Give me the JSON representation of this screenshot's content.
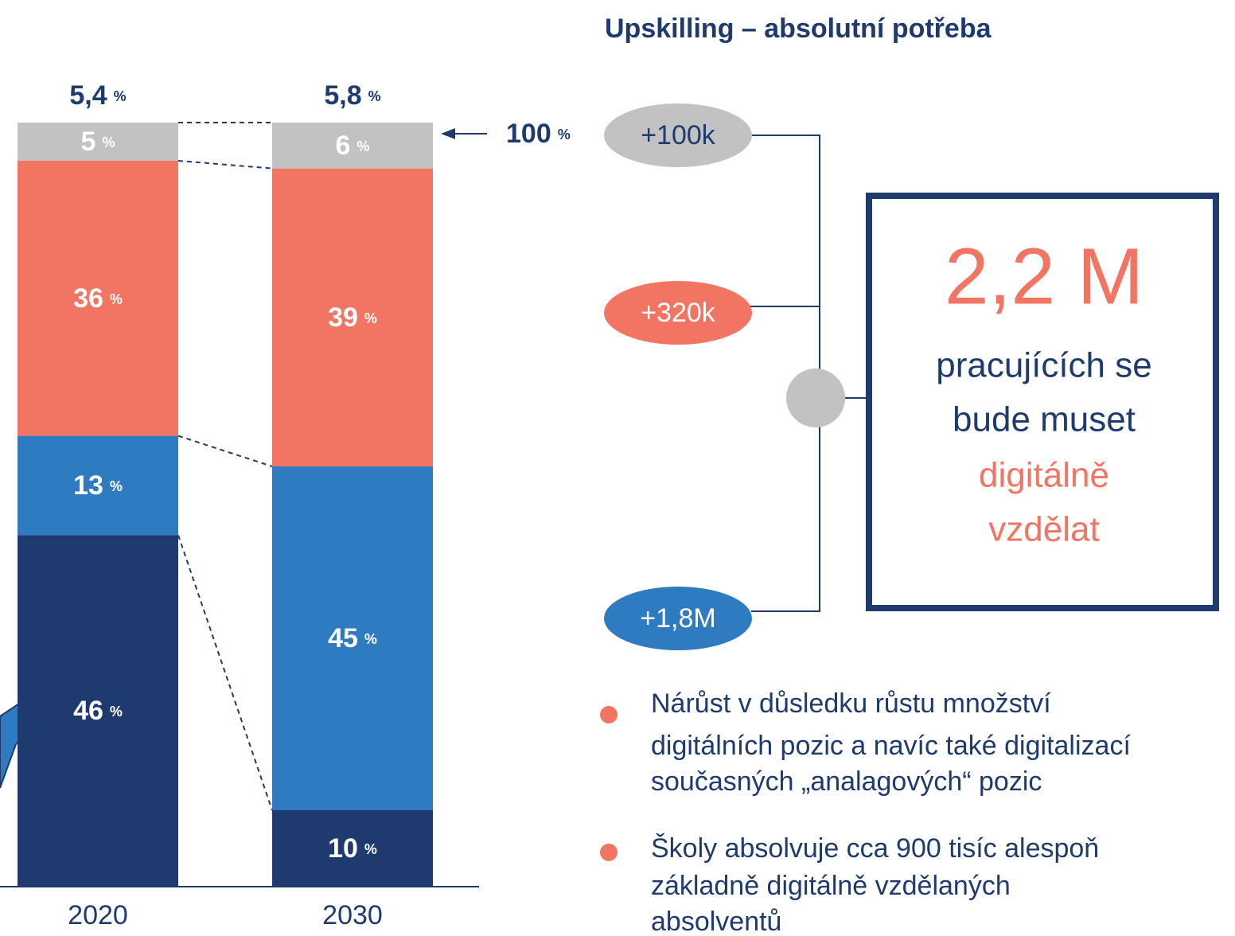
{
  "chart_data": {
    "type": "stacked_bar",
    "categories": [
      "2020",
      "2030"
    ],
    "series": [
      {
        "color": "#1e3a6e",
        "values": [
          46,
          10
        ]
      },
      {
        "color": "#2f7bc1",
        "values": [
          13,
          45
        ]
      },
      {
        "color": "#f17562",
        "values": [
          36,
          39
        ]
      },
      {
        "color": "#c2c2c2",
        "values": [
          5,
          6
        ]
      }
    ],
    "unit": "%",
    "top_labels": [
      "5,4",
      "5,8"
    ],
    "reference_label": 100,
    "ylim": [
      0,
      100
    ]
  },
  "diagram": {
    "title": "Upskilling – absolutní potřeba",
    "bubbles": [
      "+100k",
      "+320k",
      "+1,8M"
    ],
    "box": {
      "number": "2,2 M",
      "lines": [
        "pracujících se",
        "bude muset",
        "digitálně",
        "vzdělat"
      ]
    },
    "bullets": [
      [
        "Nárůst v důsledku růstu množství",
        "digitálních pozic a navíc také digitalizací",
        "současných „analagových“ pozic"
      ],
      [
        "Školy absolvuje cca 900 tisíc alespoň",
        "základně digitálně vzdělaných",
        "absolventů"
      ]
    ]
  }
}
